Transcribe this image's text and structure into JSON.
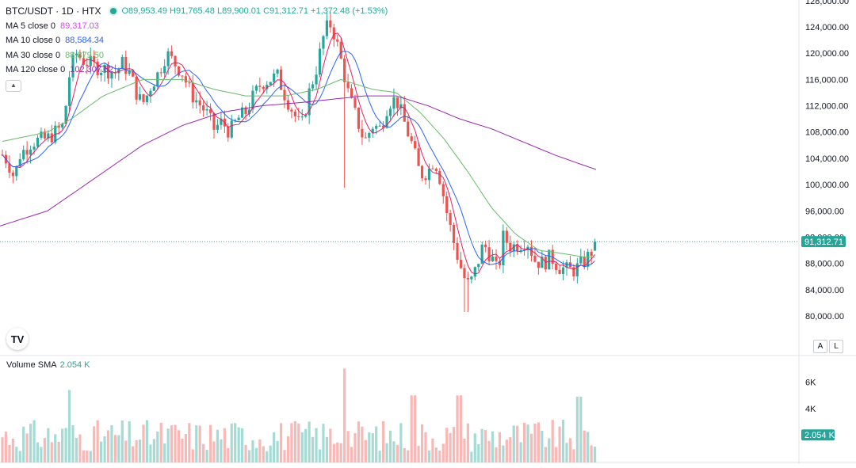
{
  "header": {
    "symbol": "BTC/USDT · 1D · HTX",
    "ohlc": {
      "o_label": "O",
      "o": "89,953.49",
      "h_label": "H",
      "h": "91,765.48",
      "l_label": "L",
      "l": "89,900.01",
      "c_label": "C",
      "c": "91,312.71",
      "change": "+1,372.48 (+1.53%)"
    }
  },
  "indicators": [
    {
      "label": "MA 5 close 0",
      "value": "89,317.03",
      "color": "#e040fb"
    },
    {
      "label": "MA 10 close 0",
      "value": "88,584.34",
      "color": "#2962ff"
    },
    {
      "label": "MA 30 close 0",
      "value": "88,879.50",
      "color": "#00c853"
    },
    {
      "label": "MA 120 close 0",
      "value": "102,307.62",
      "color": "#9c27b0"
    }
  ],
  "volume": {
    "label": "Volume SMA",
    "value": "2.054 K",
    "axis_ticks": [
      "6K",
      "4K"
    ]
  },
  "price_axis": {
    "ticks": [
      "128,000.00",
      "124,000.00",
      "120,000.00",
      "116,000.00",
      "112,000.00",
      "108,000.00",
      "104,000.00",
      "100,000.00",
      "96,000.00",
      "92,000.00",
      "88,000.00",
      "84,000.00",
      "80,000.00"
    ],
    "last_price": "91,312.71"
  },
  "buttons": {
    "auto": "A",
    "log": "L",
    "logo": "TV"
  },
  "colors": {
    "up": "#26a69a",
    "down": "#ef5350",
    "ma5": "#e91e63",
    "ma10": "#2962ff",
    "ma30": "#66bb6a",
    "ma120": "#9c27b0"
  },
  "chart_data": {
    "type": "candlestick",
    "ylim": [
      78000,
      128500
    ],
    "series_anchors_close": [
      [
        0,
        105000
      ],
      [
        10,
        103500
      ],
      [
        18,
        101000
      ],
      [
        25,
        104500
      ],
      [
        40,
        106500
      ],
      [
        60,
        107000
      ],
      [
        80,
        109000
      ],
      [
        88,
        117000
      ],
      [
        96,
        120000
      ],
      [
        104,
        119000
      ],
      [
        112,
        118500
      ],
      [
        120,
        118000
      ],
      [
        135,
        117500
      ],
      [
        145,
        117000
      ],
      [
        155,
        118500
      ],
      [
        165,
        116500
      ],
      [
        175,
        113000
      ],
      [
        182,
        112500
      ],
      [
        190,
        115000
      ],
      [
        200,
        117000
      ],
      [
        210,
        120000
      ],
      [
        220,
        118500
      ],
      [
        230,
        117000
      ],
      [
        240,
        114000
      ],
      [
        250,
        112500
      ],
      [
        260,
        111000
      ],
      [
        270,
        108500
      ],
      [
        280,
        109500
      ],
      [
        290,
        108000
      ],
      [
        300,
        110000
      ],
      [
        310,
        111000
      ],
      [
        320,
        113500
      ],
      [
        330,
        115500
      ],
      [
        340,
        116000
      ],
      [
        350,
        116500
      ],
      [
        360,
        113500
      ],
      [
        370,
        111000
      ],
      [
        380,
        108500
      ],
      [
        390,
        114000
      ],
      [
        400,
        118000
      ],
      [
        410,
        123500
      ],
      [
        418,
        124500
      ],
      [
        425,
        121500
      ],
      [
        432,
        118000
      ],
      [
        440,
        113500
      ],
      [
        450,
        110000
      ],
      [
        460,
        106500
      ],
      [
        470,
        109000
      ],
      [
        480,
        108500
      ],
      [
        490,
        112500
      ],
      [
        500,
        113000
      ],
      [
        510,
        109500
      ],
      [
        520,
        106000
      ],
      [
        530,
        101500
      ],
      [
        540,
        102000
      ],
      [
        548,
        104000
      ],
      [
        555,
        101000
      ],
      [
        565,
        95000
      ],
      [
        575,
        90000
      ],
      [
        585,
        86000
      ],
      [
        592,
        84500
      ],
      [
        600,
        87000
      ],
      [
        610,
        91000
      ],
      [
        620,
        89000
      ],
      [
        628,
        86500
      ],
      [
        635,
        92000
      ],
      [
        645,
        90500
      ],
      [
        655,
        91000
      ],
      [
        665,
        91500
      ],
      [
        675,
        88500
      ],
      [
        685,
        88000
      ],
      [
        695,
        89000
      ],
      [
        705,
        87500
      ],
      [
        715,
        87000
      ],
      [
        725,
        87000
      ],
      [
        735,
        88000
      ],
      [
        745,
        89500
      ],
      [
        752,
        91300
      ]
    ],
    "ma120_anchors": [
      [
        0,
        93700
      ],
      [
        60,
        96000
      ],
      [
        120,
        101000
      ],
      [
        180,
        106000
      ],
      [
        230,
        109000
      ],
      [
        280,
        111000
      ],
      [
        330,
        112000
      ],
      [
        380,
        112500
      ],
      [
        420,
        113000
      ],
      [
        460,
        113500
      ],
      [
        500,
        113500
      ],
      [
        540,
        112000
      ],
      [
        580,
        110000
      ],
      [
        620,
        108500
      ],
      [
        660,
        106500
      ],
      [
        700,
        104500
      ],
      [
        735,
        103000
      ],
      [
        752,
        102300
      ]
    ],
    "ma30_anchors": [
      [
        0,
        106500
      ],
      [
        60,
        108000
      ],
      [
        90,
        110000
      ],
      [
        130,
        113500
      ],
      [
        180,
        116000
      ],
      [
        230,
        116000
      ],
      [
        270,
        114500
      ],
      [
        310,
        113500
      ],
      [
        360,
        113500
      ],
      [
        400,
        114500
      ],
      [
        430,
        116000
      ],
      [
        470,
        114500
      ],
      [
        500,
        114000
      ],
      [
        530,
        111000
      ],
      [
        560,
        107000
      ],
      [
        590,
        102000
      ],
      [
        620,
        96500
      ],
      [
        650,
        92500
      ],
      [
        680,
        90000
      ],
      [
        710,
        89500
      ],
      [
        735,
        89000
      ],
      [
        752,
        88900
      ]
    ],
    "volume_max_k": 7.2
  }
}
